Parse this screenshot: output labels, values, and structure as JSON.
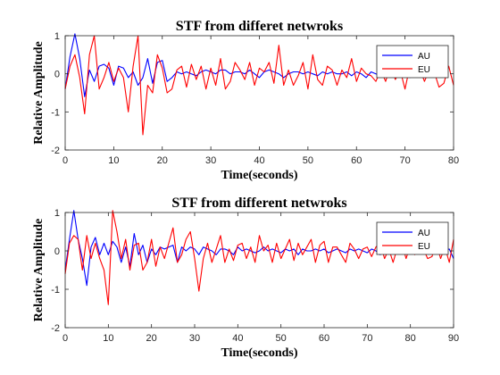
{
  "chart_data": [
    {
      "type": "line",
      "title": "STF from differet netwroks",
      "xlabel": "Time(seconds)",
      "ylabel": "Relative Amplitude",
      "xlim": [
        0,
        80
      ],
      "ylim": [
        -2,
        1
      ],
      "xticks": [
        0,
        10,
        20,
        30,
        40,
        50,
        60,
        70,
        80
      ],
      "yticks": [
        -2,
        -1,
        0,
        1
      ],
      "legend": "top-right",
      "series": [
        {
          "name": "AU",
          "color": "#0000ff",
          "x": [
            0,
            1,
            2,
            3,
            4,
            5,
            6,
            7,
            8,
            9,
            10,
            11,
            12,
            13,
            14,
            15,
            16,
            17,
            18,
            19,
            20,
            21,
            22,
            23,
            24,
            25,
            26,
            27,
            28,
            29,
            30,
            31,
            32,
            33,
            34,
            35,
            36,
            37,
            38,
            39,
            40,
            41,
            42,
            43,
            44,
            45,
            46,
            47,
            48,
            49,
            50,
            51,
            52,
            53,
            54,
            55,
            56,
            57,
            58,
            59,
            60,
            61,
            62,
            63,
            64,
            65,
            66,
            67,
            68,
            69,
            70,
            71,
            72,
            73,
            74,
            75
          ],
          "values": [
            -0.4,
            0.45,
            1.05,
            0.4,
            -0.6,
            0.1,
            -0.2,
            0.2,
            0.25,
            0.15,
            -0.3,
            0.2,
            0.15,
            -0.1,
            0.05,
            -0.3,
            -0.1,
            0.4,
            -0.25,
            0.3,
            0.35,
            -0.2,
            -0.1,
            0.05,
            0,
            0.05,
            0,
            -0.05,
            0.05,
            0.1,
            0.05,
            0,
            0.1,
            0.1,
            0,
            0.05,
            0.05,
            0,
            0.1,
            0,
            -0.1,
            0.05,
            0.1,
            0.05,
            0,
            -0.1,
            0,
            0.05,
            0.05,
            0,
            0.05,
            0,
            -0.05,
            0.05,
            0,
            0.05,
            0,
            0,
            0.05,
            -0.05,
            0.05,
            0,
            -0.1,
            0.05,
            0,
            -0.05,
            -0.05,
            0.05,
            0,
            -0.05,
            0,
            -0.1,
            0.05,
            -0.05,
            -0.1,
            0.05
          ]
        },
        {
          "name": "EU",
          "color": "#ff0000",
          "x": [
            0,
            1,
            2,
            3,
            4,
            5,
            6,
            7,
            8,
            9,
            10,
            11,
            12,
            13,
            14,
            15,
            16,
            17,
            18,
            19,
            20,
            21,
            22,
            23,
            24,
            25,
            26,
            27,
            28,
            29,
            30,
            31,
            32,
            33,
            34,
            35,
            36,
            37,
            38,
            39,
            40,
            41,
            42,
            43,
            44,
            45,
            46,
            47,
            48,
            49,
            50,
            51,
            52,
            53,
            54,
            55,
            56,
            57,
            58,
            59,
            60,
            61,
            62,
            63,
            64,
            65,
            66,
            67,
            68,
            69,
            70,
            71,
            72,
            73,
            74,
            75,
            76,
            77,
            78,
            79,
            80
          ],
          "values": [
            -0.4,
            0.2,
            0.5,
            -0.1,
            -1.05,
            0.5,
            1.0,
            -0.4,
            -0.1,
            0.3,
            -0.2,
            0.15,
            -0.1,
            -1.0,
            0.2,
            1.0,
            -1.6,
            -0.3,
            -0.5,
            0.5,
            0.15,
            -0.5,
            -0.4,
            0.1,
            0.2,
            -0.35,
            0.25,
            -0.15,
            0.2,
            -0.4,
            0.15,
            -0.3,
            0.4,
            -0.4,
            -0.2,
            0.3,
            0.1,
            -0.15,
            0.3,
            -0.3,
            0.15,
            0.05,
            0.3,
            -0.25,
            0.75,
            -0.3,
            0.1,
            -0.3,
            -0.05,
            0.3,
            -0.4,
            0.5,
            -0.15,
            -0.3,
            0.2,
            0.1,
            -0.3,
            0.1,
            -0.1,
            0.4,
            -0.2,
            0.15,
            0,
            -0.05,
            -0.2,
            0.1,
            -0.2,
            0.2,
            -0.15,
            0.1,
            -0.4,
            0.2,
            0,
            0.15,
            -0.2,
            0.1,
            0.05,
            -0.35,
            -0.25,
            0.2,
            -0.3
          ]
        }
      ]
    },
    {
      "type": "line",
      "title": "STF from different netwroks",
      "xlabel": "Time(seconds)",
      "ylabel": "Relative Amplitude",
      "xlim": [
        0,
        90
      ],
      "ylim": [
        -2,
        1
      ],
      "xticks": [
        0,
        10,
        20,
        30,
        40,
        50,
        60,
        70,
        80,
        90
      ],
      "yticks": [
        -2,
        -1,
        0,
        1
      ],
      "legend": "top-right",
      "series": [
        {
          "name": "AU",
          "color": "#0000ff",
          "x": [
            0,
            1,
            2,
            3,
            4,
            5,
            6,
            7,
            8,
            9,
            10,
            11,
            12,
            13,
            14,
            15,
            16,
            17,
            18,
            19,
            20,
            21,
            22,
            23,
            24,
            25,
            26,
            27,
            28,
            29,
            30,
            31,
            32,
            33,
            34,
            35,
            36,
            37,
            38,
            39,
            40,
            41,
            42,
            43,
            44,
            45,
            46,
            47,
            48,
            49,
            50,
            51,
            52,
            53,
            54,
            55,
            56,
            57,
            58,
            59,
            60,
            61,
            62,
            63,
            64,
            65,
            66,
            67,
            68,
            69,
            70,
            71,
            72,
            73,
            74,
            75,
            76,
            77,
            78,
            79,
            80,
            81,
            82,
            83,
            84,
            85,
            86,
            87,
            88,
            89,
            90
          ],
          "values": [
            -0.5,
            0.3,
            1.05,
            0.3,
            -0.2,
            -0.9,
            0.1,
            0.35,
            -0.1,
            0.2,
            -0.1,
            0.25,
            0.1,
            -0.3,
            0.1,
            -0.4,
            0.45,
            -0.1,
            0.15,
            -0.3,
            0.05,
            -0.1,
            0.1,
            0.05,
            0.1,
            0.15,
            -0.3,
            0.1,
            0,
            0.1,
            0.05,
            -0.1,
            0.1,
            0.05,
            0,
            -0.1,
            0.05,
            0.05,
            0,
            -0.1,
            0.1,
            0,
            0.05,
            0,
            -0.05,
            0,
            0.1,
            0,
            0.05,
            0,
            -0.05,
            0.05,
            0,
            0.05,
            -0.1,
            0.05,
            0,
            0,
            0.05,
            0,
            0.05,
            -0.05,
            0,
            0.05,
            0,
            -0.05,
            0.05,
            0,
            0.05,
            0,
            -0.05,
            0.05,
            0,
            -0.1,
            0.05,
            0,
            0.05,
            -0.05,
            0,
            0.05,
            0,
            -0.05,
            0.05,
            0,
            0.05,
            0,
            -0.05,
            0.05,
            0,
            0.05,
            -0.2
          ]
        },
        {
          "name": "EU",
          "color": "#ff0000",
          "x": [
            0,
            1,
            2,
            3,
            4,
            5,
            6,
            7,
            8,
            9,
            10,
            11,
            12,
            13,
            14,
            15,
            16,
            17,
            18,
            19,
            20,
            21,
            22,
            23,
            24,
            25,
            26,
            27,
            28,
            29,
            30,
            31,
            32,
            33,
            34,
            35,
            36,
            37,
            38,
            39,
            40,
            41,
            42,
            43,
            44,
            45,
            46,
            47,
            48,
            49,
            50,
            51,
            52,
            53,
            54,
            55,
            56,
            57,
            58,
            59,
            60,
            61,
            62,
            63,
            64,
            65,
            66,
            67,
            68,
            69,
            70,
            71,
            72,
            73,
            74,
            75,
            76,
            77,
            78,
            79,
            80,
            81,
            82,
            83,
            84,
            85,
            86,
            87,
            88,
            89,
            90
          ],
          "values": [
            -0.6,
            0.2,
            0.4,
            0.3,
            -0.5,
            0.4,
            -0.2,
            0.2,
            -0.2,
            -0.5,
            -1.4,
            1.05,
            0.5,
            -0.2,
            0.3,
            -0.5,
            0.15,
            0.2,
            -0.5,
            -0.3,
            0.3,
            -0.4,
            0.1,
            -0.2,
            0.2,
            0.6,
            -0.3,
            -0.1,
            0.3,
            0.5,
            -0.2,
            -1.05,
            -0.2,
            0.2,
            -0.3,
            0.05,
            0.4,
            -0.3,
            0.05,
            -0.25,
            0.15,
            0.2,
            -0.2,
            0.1,
            -0.3,
            0.4,
            0,
            0.15,
            -0.3,
            0.2,
            -0.2,
            0.05,
            0.3,
            -0.25,
            0.2,
            -0.1,
            0.1,
            0.3,
            -0.3,
            0.15,
            0.25,
            -0.3,
            0.1,
            0.1,
            -0.1,
            -0.3,
            0.2,
            0.05,
            -0.2,
            0.05,
            0.1,
            -0.15,
            0.1,
            0.2,
            -0.2,
            0.05,
            -0.3,
            0.1,
            0.2,
            -0.2,
            0.15,
            -0.1,
            0.15,
            0.05,
            -0.2,
            -0.15,
            0.2,
            -0.2,
            0.1,
            -0.3,
            0.3
          ]
        }
      ]
    }
  ]
}
